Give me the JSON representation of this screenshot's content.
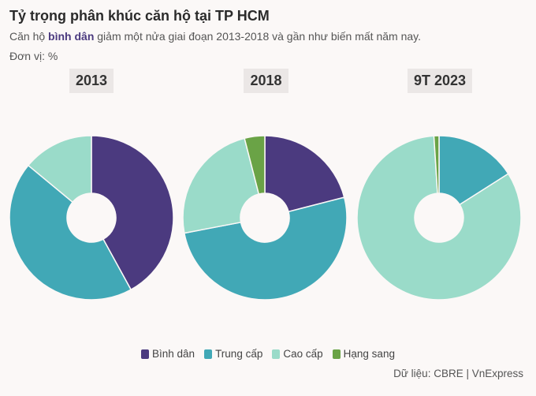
{
  "header": {
    "title": "Tỷ trọng phân khúc căn hộ tại TP HCM",
    "subtitle_pre": "Căn hộ ",
    "subtitle_highlight": "bình dân",
    "subtitle_post": " giảm một nửa giai đoạn 2013-2018 và gần như biến mất năm nay.",
    "unit": "Đơn vị: %"
  },
  "source": "Dữ liệu: CBRE | VnExpress",
  "chart_data": {
    "type": "pie",
    "variant": "donut",
    "unit": "%",
    "categories": [
      "Bình dân",
      "Trung cấp",
      "Cao cấp",
      "Hạng sang"
    ],
    "colors": [
      "#4b3a7f",
      "#41a8b6",
      "#9adbc9",
      "#6aa346"
    ],
    "panels": [
      {
        "label": "2013",
        "values": [
          42,
          44,
          14,
          0
        ]
      },
      {
        "label": "2018",
        "values": [
          21,
          51,
          24,
          4
        ]
      },
      {
        "label": "9T 2023",
        "values": [
          0,
          16,
          83,
          1
        ]
      }
    ],
    "legend_position": "bottom"
  }
}
